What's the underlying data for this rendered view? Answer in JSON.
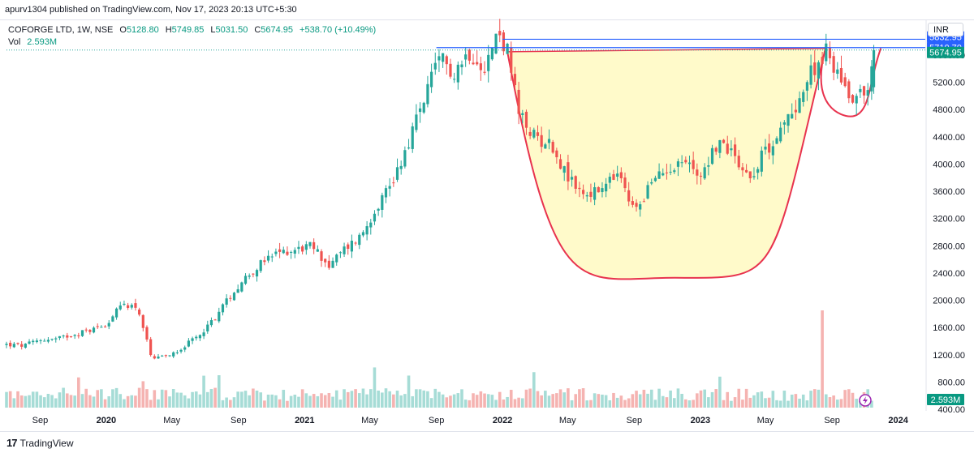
{
  "header": {
    "published": "apurv1304 published on TradingView.com, Nov 17, 2023 20:13 UTC+5:30"
  },
  "legend": {
    "symbol": "COFORGE LTD, 1W, NSE",
    "o_label": "O",
    "o_value": "5128.80",
    "h_label": "H",
    "h_value": "5749.85",
    "l_label": "L",
    "l_value": "5031.50",
    "c_label": "C",
    "c_value": "5674.95",
    "change": "+538.70 (+10.49%)",
    "vol_label": "Vol",
    "vol_value": "2.593M"
  },
  "currency": "INR",
  "footer": {
    "logo": "17",
    "brand": "TradingView"
  },
  "colors": {
    "up": "#26a69a",
    "down": "#ef5350",
    "pattern_fill": "#fff9c4",
    "pattern_line": "#e8334e",
    "level_line": "#2962ff",
    "price_tag": "#089981"
  },
  "chart_data": {
    "type": "candlestick",
    "timeframe": "1W",
    "y_unit": "INR",
    "ylim": [
      400,
      6100
    ],
    "y_ticks": [
      400,
      800,
      1200,
      1600,
      2000,
      2400,
      2800,
      3200,
      3600,
      4000,
      4400,
      4800,
      5200,
      5600
    ],
    "y_tick_labels": [
      "400.00",
      "800.00",
      "1200.00",
      "1600.00",
      "2000.00",
      "2400.00",
      "2800.00",
      "3200.00",
      "3600.00",
      "4000.00",
      "4400.00",
      "4800.00",
      "5200.00",
      "5600.00"
    ],
    "x_range": [
      "2019-07-01",
      "2024-02-20"
    ],
    "x_ticks": [
      {
        "date": "2019-09-01",
        "label": "Sep"
      },
      {
        "date": "2020-01-01",
        "label": "2020"
      },
      {
        "date": "2020-05-01",
        "label": "May"
      },
      {
        "date": "2020-09-01",
        "label": "Sep"
      },
      {
        "date": "2021-01-01",
        "label": "2021"
      },
      {
        "date": "2021-05-01",
        "label": "May"
      },
      {
        "date": "2021-09-01",
        "label": "Sep"
      },
      {
        "date": "2022-01-01",
        "label": "2022"
      },
      {
        "date": "2022-05-01",
        "label": "May"
      },
      {
        "date": "2022-09-01",
        "label": "Sep"
      },
      {
        "date": "2023-01-01",
        "label": "2023"
      },
      {
        "date": "2023-05-01",
        "label": "May"
      },
      {
        "date": "2023-09-01",
        "label": "Sep"
      },
      {
        "date": "2024-01-01",
        "label": "2024"
      }
    ],
    "close_path": [
      [
        "2019-07-01",
        1350
      ],
      [
        "2019-08-01",
        1330
      ],
      [
        "2019-09-01",
        1420
      ],
      [
        "2019-10-01",
        1430
      ],
      [
        "2019-11-01",
        1500
      ],
      [
        "2019-12-01",
        1560
      ],
      [
        "2020-01-01",
        1650
      ],
      [
        "2020-02-01",
        1950
      ],
      [
        "2020-02-28",
        1900
      ],
      [
        "2020-03-25",
        1120
      ],
      [
        "2020-04-20",
        1180
      ],
      [
        "2020-05-15",
        1280
      ],
      [
        "2020-06-15",
        1450
      ],
      [
        "2020-07-15",
        1700
      ],
      [
        "2020-08-15",
        2050
      ],
      [
        "2020-09-15",
        2350
      ],
      [
        "2020-10-15",
        2550
      ],
      [
        "2020-11-15",
        2700
      ],
      [
        "2020-12-15",
        2750
      ],
      [
        "2021-01-15",
        2800
      ],
      [
        "2021-02-15",
        2500
      ],
      [
        "2021-03-15",
        2750
      ],
      [
        "2021-04-15",
        2950
      ],
      [
        "2021-05-15",
        3400
      ],
      [
        "2021-06-15",
        3800
      ],
      [
        "2021-07-15",
        4400
      ],
      [
        "2021-08-15",
        5100
      ],
      [
        "2021-09-10",
        5550
      ],
      [
        "2021-10-01",
        5350
      ],
      [
        "2021-11-01",
        5650
      ],
      [
        "2021-12-01",
        5450
      ],
      [
        "2021-12-25",
        5950
      ],
      [
        "2022-01-10",
        5650
      ],
      [
        "2022-02-01",
        4700
      ],
      [
        "2022-03-01",
        4400
      ],
      [
        "2022-04-01",
        4300
      ],
      [
        "2022-05-01",
        3800
      ],
      [
        "2022-06-01",
        3550
      ],
      [
        "2022-07-01",
        3600
      ],
      [
        "2022-08-01",
        3850
      ],
      [
        "2022-09-01",
        3300
      ],
      [
        "2022-10-01",
        3700
      ],
      [
        "2022-11-01",
        3950
      ],
      [
        "2022-12-01",
        4050
      ],
      [
        "2023-01-01",
        3850
      ],
      [
        "2023-02-01",
        4300
      ],
      [
        "2023-03-01",
        4200
      ],
      [
        "2023-04-01",
        3800
      ],
      [
        "2023-05-01",
        4200
      ],
      [
        "2023-06-01",
        4500
      ],
      [
        "2023-07-01",
        4950
      ],
      [
        "2023-08-01",
        5450
      ],
      [
        "2023-08-20",
        5650
      ],
      [
        "2023-09-15",
        5300
      ],
      [
        "2023-10-05",
        5000
      ],
      [
        "2023-11-01",
        5080
      ],
      [
        "2023-11-10",
        5140
      ],
      [
        "2023-11-17",
        5675
      ]
    ],
    "volume_max_m": 22,
    "volume_spike": {
      "date": "2023-08-15",
      "value_m": 22
    },
    "volume_label": "2.593M",
    "levels": [
      {
        "value": 5832.95,
        "label": "5832.95",
        "from": "2022-01-01"
      },
      {
        "value": 5710.7,
        "label": "5710.70",
        "from": "2021-09-01"
      },
      {
        "value": 5674.95,
        "label": "5674.95",
        "current": true
      }
    ],
    "pattern": {
      "name": "cup and handle",
      "cup_start": [
        "2022-01-10",
        5650
      ],
      "cup_bottom": [
        "2022-11-15",
        2330
      ],
      "cup_end": [
        "2023-08-20",
        5700
      ],
      "handle_bottom": [
        "2023-10-05",
        4700
      ],
      "handle_end": [
        "2023-11-30",
        5700
      ]
    },
    "grid": false
  }
}
